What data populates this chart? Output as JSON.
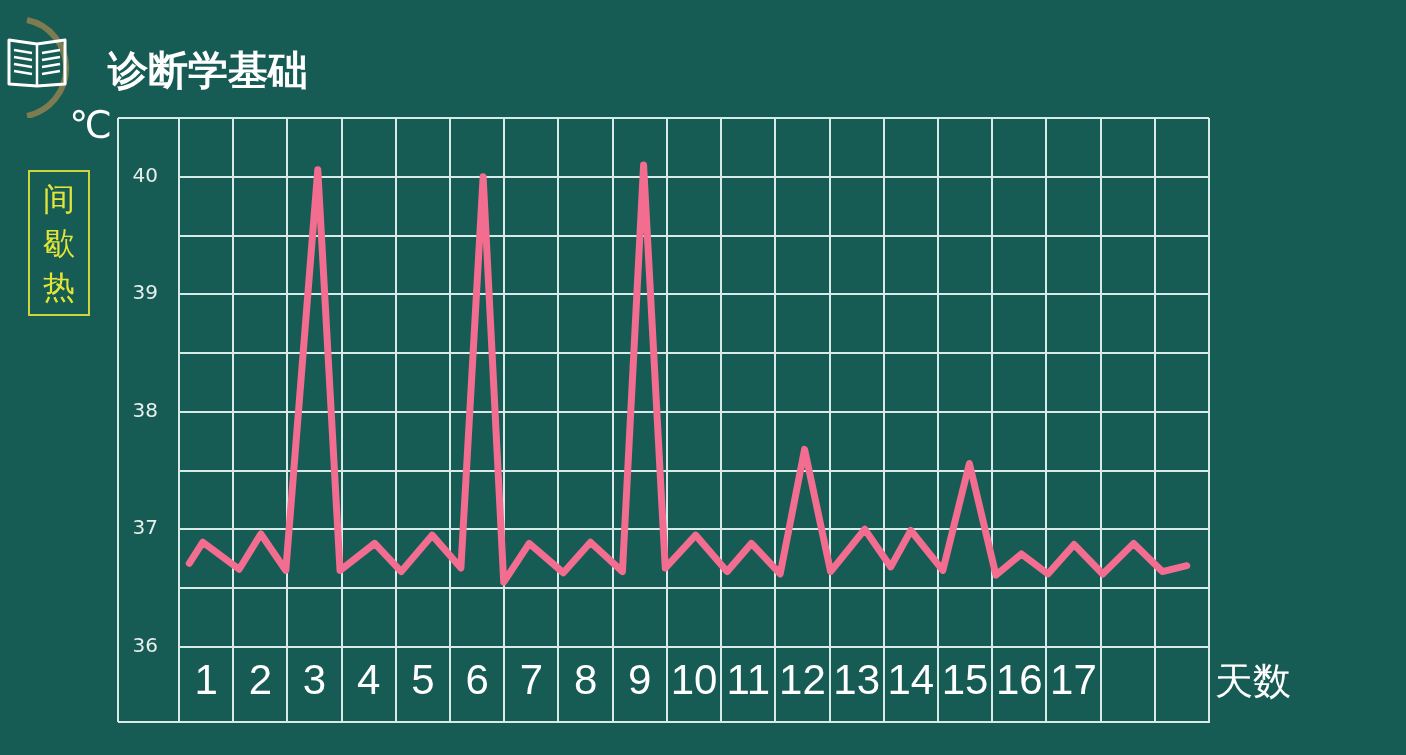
{
  "chart_data": {
    "type": "line",
    "title": "诊断学基础",
    "subtitle": "间歇热",
    "xlabel": "天数",
    "ylabel": "℃",
    "x": [
      0.69,
      0.94,
      1.61,
      2.01,
      2.47,
      3.06,
      3.47,
      4.11,
      4.6,
      5.17,
      5.7,
      6.11,
      6.49,
      6.96,
      7.59,
      8.09,
      8.68,
      9.07,
      9.47,
      10.03,
      10.61,
      11.06,
      11.59,
      12.04,
      12.52,
      13.15,
      13.63,
      14.0,
      14.59,
      15.08,
      15.57,
      16.04,
      16.53,
      17.01,
      17.54,
      18.11,
      18.64,
      19.09
    ],
    "values": [
      36.71,
      36.89,
      36.66,
      36.96,
      36.65,
      40.06,
      36.65,
      36.88,
      36.64,
      36.95,
      36.67,
      40.0,
      36.55,
      36.88,
      36.63,
      36.89,
      36.64,
      40.1,
      36.67,
      36.95,
      36.64,
      36.88,
      36.62,
      37.68,
      36.64,
      37.0,
      36.68,
      36.99,
      36.65,
      37.56,
      36.61,
      36.79,
      36.62,
      36.87,
      36.62,
      36.88,
      36.64,
      36.69
    ],
    "color": "#f26d8f",
    "xlim": [
      0.5,
      19.5
    ],
    "ylim": [
      35.36,
      40.5
    ],
    "xticks": [
      1,
      {
        "value": 1.5,
        "label": null
      },
      2,
      {
        "value": 2.5,
        "label": null
      },
      3,
      {
        "value": 3.5,
        "label": null
      },
      4,
      {
        "value": 4.5,
        "label": null
      },
      5,
      {
        "value": 5.5,
        "label": null
      },
      6,
      {
        "value": 6.5,
        "label": null
      },
      7,
      {
        "value": 7.5,
        "label": null
      },
      8,
      {
        "value": 8.5,
        "label": null
      },
      9,
      {
        "value": 9.5,
        "label": null
      },
      10,
      {
        "value": 10.5,
        "label": null
      },
      11,
      {
        "value": 11.5,
        "label": null
      },
      12,
      {
        "value": 12.5,
        "label": null
      },
      13,
      {
        "value": 13.5,
        "label": null
      },
      14,
      {
        "value": 14.5,
        "label": null
      },
      15,
      {
        "value": 15.5,
        "label": null
      },
      16,
      {
        "value": 16.5,
        "label": null
      },
      17,
      {
        "value": 17.5,
        "label": null
      },
      {
        "value": 18.5,
        "label": null
      },
      {
        "value": 19.5,
        "label": null
      }
    ],
    "yticks": [
      36,
      {
        "value": 36.5,
        "label": null
      },
      37,
      {
        "value": 37.5,
        "label": null
      },
      38,
      {
        "value": 38.5,
        "label": null
      },
      39,
      {
        "value": 39.5,
        "label": null
      },
      40,
      {
        "value": 40.5,
        "label": null
      }
    ],
    "grid": true,
    "marker": "none"
  }
}
